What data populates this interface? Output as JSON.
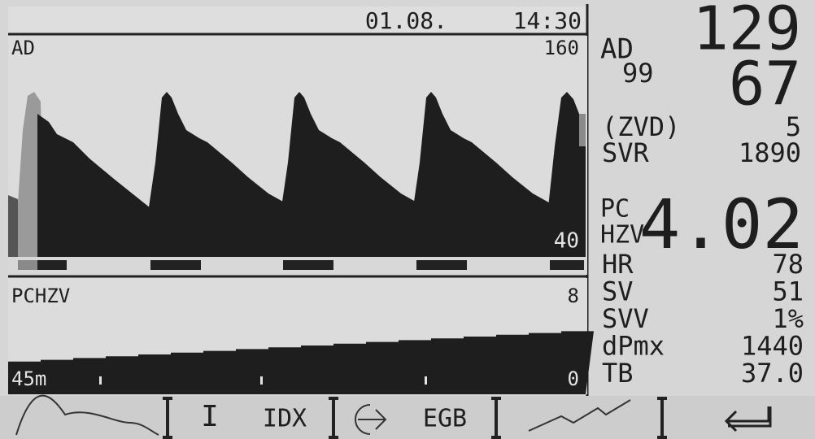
{
  "header": {
    "date": "01.08.",
    "time": "14:30"
  },
  "ad_chart": {
    "label": "AD",
    "scale_max": "160",
    "scale_min": "40"
  },
  "pchzv_chart": {
    "label": "PCHZV",
    "scale_max": "8",
    "scale_min": "0",
    "time_span": "45m"
  },
  "readouts": {
    "ad": {
      "label": "AD",
      "systolic": "129",
      "mean": "99",
      "diastolic": "67"
    },
    "zvd": {
      "label": "(ZVD)",
      "value": "5"
    },
    "svr": {
      "label": "SVR",
      "value": "1890"
    },
    "pc": {
      "label_top": "PC",
      "label_bottom": "HZV",
      "value": "4.02"
    },
    "rows": [
      {
        "label": "HR",
        "value": "78"
      },
      {
        "label": "SV",
        "value": "51"
      },
      {
        "label": "SVV",
        "value": "1%"
      },
      {
        "label": "dPmx",
        "value": "1440"
      },
      {
        "label": "TB",
        "value": "37.0"
      }
    ]
  },
  "softkeys": {
    "index": "I",
    "idx": "IDX",
    "egb": "EGB"
  }
}
